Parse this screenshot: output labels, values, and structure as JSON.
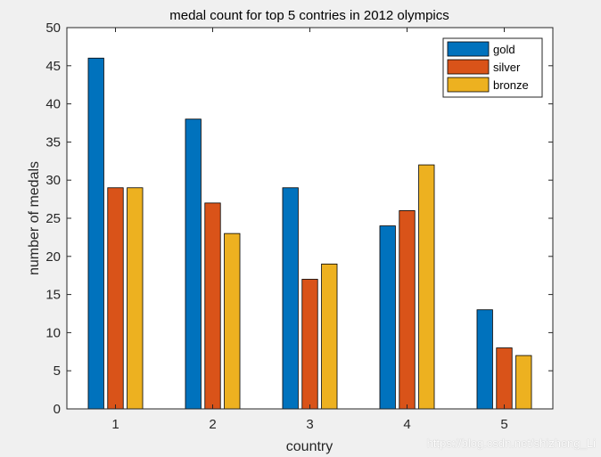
{
  "chart_data": {
    "type": "bar",
    "title": "medal count for top 5 contries in 2012 olympics",
    "xlabel": "country",
    "ylabel": "number of medals",
    "categories": [
      "1",
      "2",
      "3",
      "4",
      "5"
    ],
    "series": [
      {
        "name": "gold",
        "color": "#0072bd",
        "values": [
          46,
          38,
          29,
          24,
          13
        ]
      },
      {
        "name": "silver",
        "color": "#d95319",
        "values": [
          29,
          27,
          17,
          26,
          8
        ]
      },
      {
        "name": "bronze",
        "color": "#edb120",
        "values": [
          29,
          23,
          19,
          32,
          7
        ]
      }
    ],
    "ylim": [
      0,
      50
    ],
    "yticks": [
      0,
      5,
      10,
      15,
      20,
      25,
      30,
      35,
      40,
      45,
      50
    ],
    "grid": false,
    "legend_position": "top-right"
  },
  "watermark": "https://blog.csdn.net/shizheng_Li"
}
